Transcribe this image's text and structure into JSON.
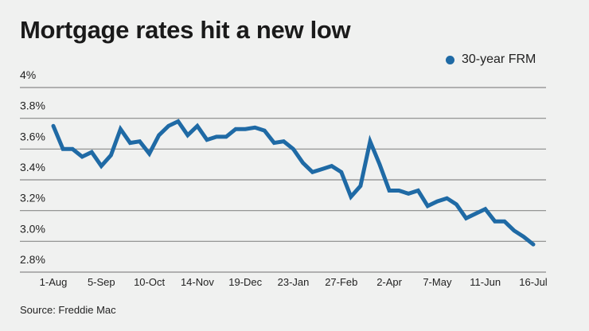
{
  "chart_data": {
    "type": "line",
    "title": "Mortgage rates hit a new low",
    "source": "Source: Freddie Mac",
    "xlabel": "",
    "ylabel": "",
    "ylim": [
      2.8,
      4.0
    ],
    "grid": true,
    "legend_position": "top-right",
    "y_ticks": [
      {
        "value": 4.0,
        "label": "4%"
      },
      {
        "value": 3.8,
        "label": "3.8%"
      },
      {
        "value": 3.6,
        "label": "3.6%"
      },
      {
        "value": 3.4,
        "label": "3.4%"
      },
      {
        "value": 3.2,
        "label": "3.2%"
      },
      {
        "value": 3.0,
        "label": "3.0%"
      },
      {
        "value": 2.8,
        "label": "2.8%"
      }
    ],
    "x_ticks": [
      {
        "index": 0,
        "label": "1-Aug"
      },
      {
        "index": 5,
        "label": "5-Sep"
      },
      {
        "index": 10,
        "label": "10-Oct"
      },
      {
        "index": 15,
        "label": "14-Nov"
      },
      {
        "index": 20,
        "label": "19-Dec"
      },
      {
        "index": 25,
        "label": "23-Jan"
      },
      {
        "index": 30,
        "label": "27-Feb"
      },
      {
        "index": 35,
        "label": "2-Apr"
      },
      {
        "index": 40,
        "label": "7-May"
      },
      {
        "index": 45,
        "label": "11-Jun"
      },
      {
        "index": 50,
        "label": "16-Jul"
      }
    ],
    "series": [
      {
        "name": "30-year FRM",
        "color": "#1f6aa5",
        "values": [
          3.75,
          3.6,
          3.6,
          3.55,
          3.58,
          3.49,
          3.56,
          3.73,
          3.64,
          3.65,
          3.57,
          3.69,
          3.75,
          3.78,
          3.69,
          3.75,
          3.66,
          3.68,
          3.68,
          3.73,
          3.73,
          3.74,
          3.72,
          3.64,
          3.65,
          3.6,
          3.51,
          3.45,
          3.47,
          3.49,
          3.45,
          3.29,
          3.36,
          3.65,
          3.5,
          3.33,
          3.33,
          3.31,
          3.33,
          3.23,
          3.26,
          3.28,
          3.24,
          3.15,
          3.18,
          3.21,
          3.13,
          3.13,
          3.07,
          3.03,
          2.98
        ]
      }
    ]
  }
}
